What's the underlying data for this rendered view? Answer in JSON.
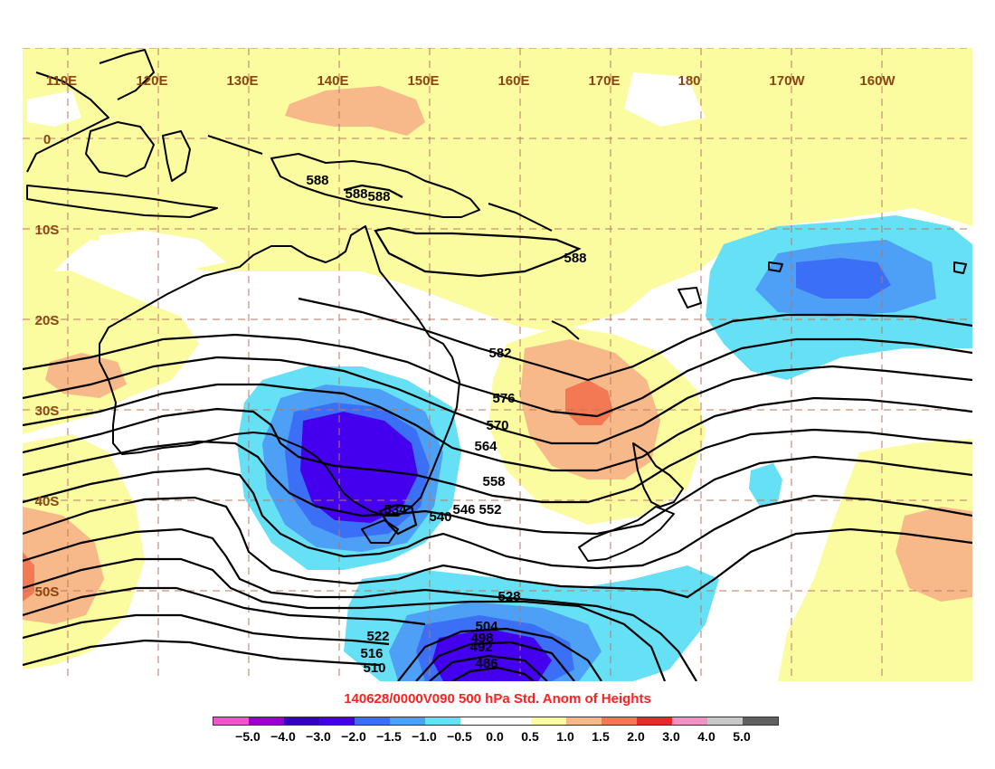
{
  "title": "140628/0000V090 500 hPa Std. Anom of Heights",
  "lon_labels": [
    "110E",
    "120E",
    "130E",
    "140E",
    "150E",
    "160E",
    "170E",
    "180",
    "170W",
    "160W"
  ],
  "lat_labels": [
    "0",
    "10S",
    "20S",
    "30S",
    "40S",
    "50S"
  ],
  "contour_labels": [
    "588",
    "588",
    "588",
    "588",
    "582",
    "576",
    "570",
    "564",
    "558",
    "552",
    "546",
    "540",
    "534",
    "528",
    "522",
    "516",
    "510",
    "504",
    "498",
    "492",
    "486"
  ],
  "colorbar": {
    "colors": [
      "#ee55cc",
      "#9900cc",
      "#3300bb",
      "#4400ee",
      "#3b6ff5",
      "#4da0f5",
      "#66e0f5",
      "#ffffff",
      "#ffffff",
      "#fbfba0",
      "#f8b98a",
      "#f37854",
      "#e8282a",
      "#f093c4",
      "#c8c8c8",
      "#606060"
    ],
    "labels": [
      "−5.0",
      "−4.0",
      "−3.0",
      "−2.0",
      "−1.5",
      "−1.0",
      "−0.5",
      "0.0",
      "0.5",
      "1.0",
      "1.5",
      "2.0",
      "3.0",
      "4.0",
      "5.0"
    ]
  }
}
